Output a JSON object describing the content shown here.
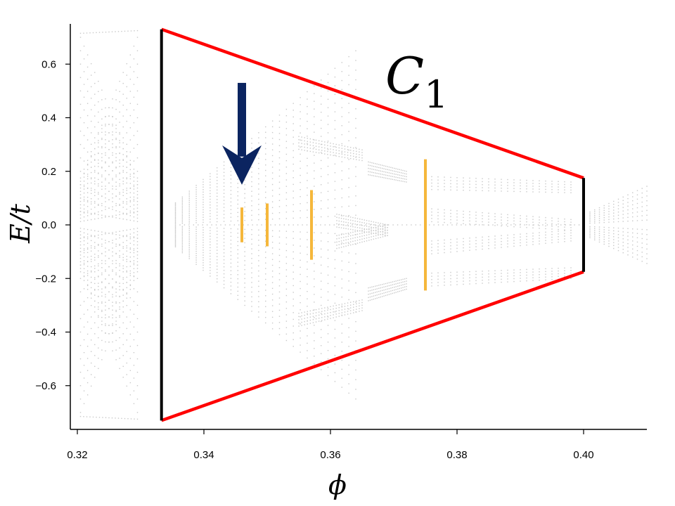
{
  "chart_data": {
    "type": "scatter",
    "xlabel": "ϕ",
    "ylabel": "E/t",
    "xlim": [
      0.32,
      0.41
    ],
    "ylim": [
      -0.76,
      0.76
    ],
    "xticks": [
      0.32,
      0.34,
      0.36,
      0.38,
      0.4
    ],
    "xtick_labels": [
      "0.32",
      "0.34",
      "0.36",
      "0.38",
      "0.40"
    ],
    "yticks": [
      -0.6,
      -0.4,
      -0.2,
      0.0,
      0.2,
      0.4,
      0.6
    ],
    "ytick_labels": [
      "−0.6",
      "−0.4",
      "−0.2",
      "0.0",
      "0.2",
      "0.4",
      "0.6"
    ],
    "grid": false,
    "annotation_label": {
      "main": "C",
      "sub": "1",
      "position": "top-right"
    },
    "region_outline": {
      "left_x": 0.3333,
      "right_x": 0.4,
      "left_top": 0.73,
      "left_bottom": -0.73,
      "right_top": 0.175,
      "right_bottom": -0.175,
      "edge_color": "#ff0000",
      "side_color": "#000000"
    },
    "highlight_lines": [
      {
        "x": 0.346,
        "ymin": -0.065,
        "ymax": 0.065
      },
      {
        "x": 0.35,
        "ymin": -0.08,
        "ymax": 0.08
      },
      {
        "x": 0.357,
        "ymin": -0.13,
        "ymax": 0.13
      },
      {
        "x": 0.375,
        "ymin": -0.245,
        "ymax": 0.245
      }
    ],
    "arrow": {
      "x": 0.346,
      "y_start": 0.53,
      "y_end": 0.15,
      "color": "#0b2460"
    },
    "colors": {
      "spectrum": "#c8c8c8",
      "highlight": "#f5b73b"
    }
  }
}
